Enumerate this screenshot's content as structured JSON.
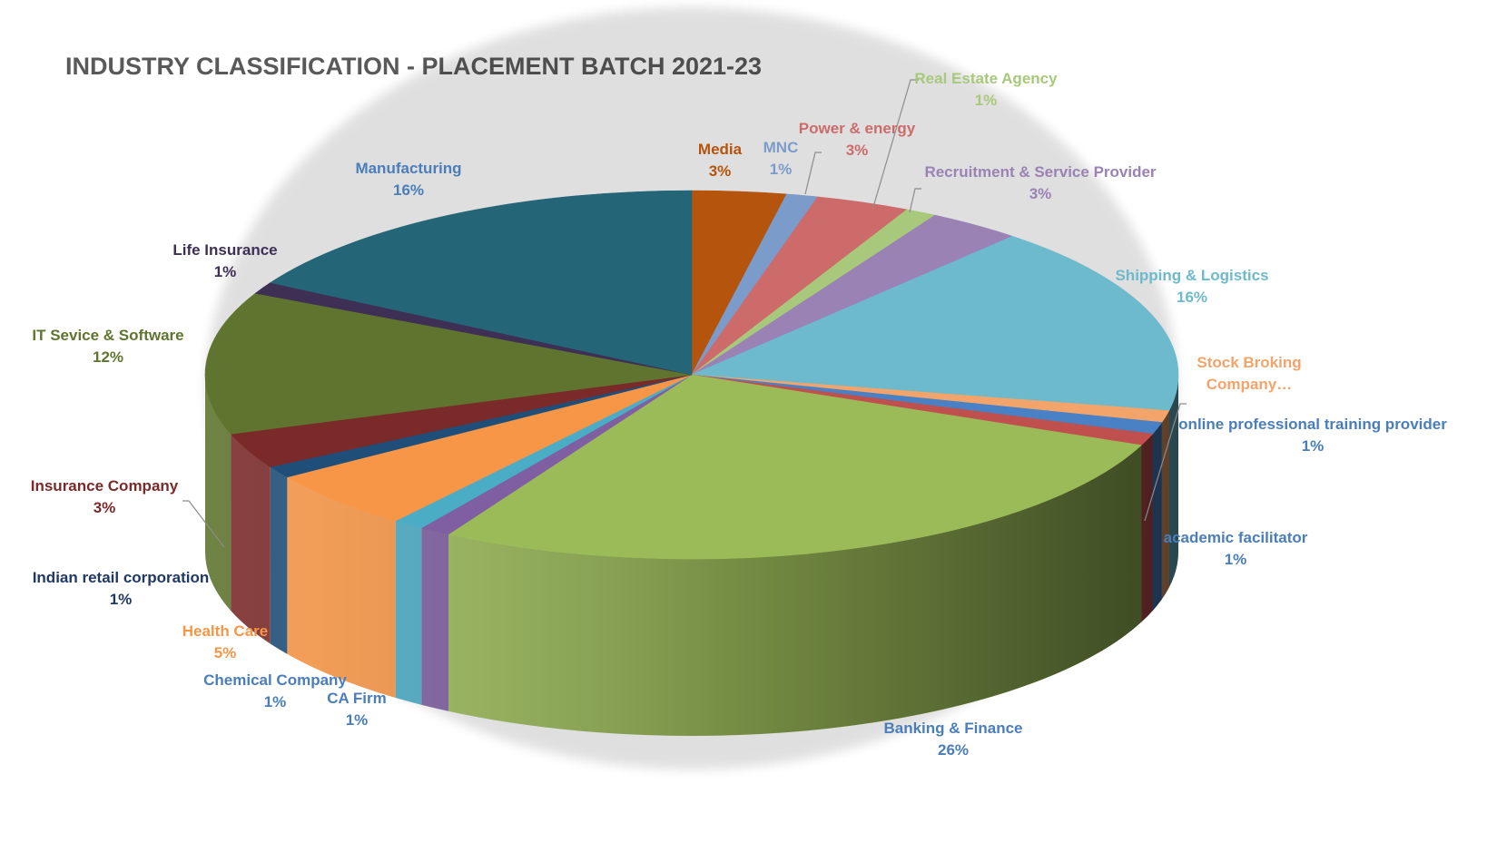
{
  "chart_data": {
    "type": "pie",
    "style": "3d-pie",
    "title": "INDUSTRY CLASSIFICATION - PLACEMENT BATCH 2021-23",
    "slices": [
      {
        "name": "Media",
        "value": 3,
        "label": "3%",
        "color": "#B5540C",
        "label_color": "#B5540C"
      },
      {
        "name": "MNC",
        "value": 1,
        "label": "1%",
        "color": "#7B9CCB",
        "label_color": "#7B9CCB"
      },
      {
        "name": "Power & energy",
        "value": 3,
        "label": "3%",
        "color": "#CD6B6B",
        "label_color": "#CD6B6B"
      },
      {
        "name": "Real Estate Agency",
        "value": 1,
        "label": "1%",
        "color": "#A8C97B",
        "label_color": "#A8C97B"
      },
      {
        "name": "Recruitment & Service Provider",
        "value": 3,
        "label": "3%",
        "color": "#9A82B5",
        "label_color": "#9A82B5"
      },
      {
        "name": "Shipping & Logistics",
        "value": 16,
        "label": "16%",
        "color": "#6DBACD",
        "label_color": "#6DBACD"
      },
      {
        "name": "Stock Broking Company...",
        "value": 1,
        "label": "",
        "color": "#F2A46A",
        "label_color": "#F2A46A"
      },
      {
        "name": "online professional training provider",
        "value": 1,
        "label": "1%",
        "color": "#4A80C4",
        "label_color": "#4A7EBB"
      },
      {
        "name": "academic facilitator",
        "value": 1,
        "label": "1%",
        "color": "#C0504D",
        "label_color": "#4A7EBB"
      },
      {
        "name": "Banking & Finance",
        "value": 26,
        "label": "26%",
        "color": "#9BBB59",
        "label_color": "#4A7EBB"
      },
      {
        "name": "CA Firm",
        "value": 1,
        "label": "1%",
        "color": "#7F5FA2",
        "label_color": "#4A7EBB"
      },
      {
        "name": "Chemical Company",
        "value": 1,
        "label": "1%",
        "color": "#4BACC6",
        "label_color": "#4A7EBB"
      },
      {
        "name": "Health Care",
        "value": 5,
        "label": "5%",
        "color": "#F79646",
        "label_color": "#F79646"
      },
      {
        "name": "Indian retail corporation",
        "value": 1,
        "label": "1%",
        "color": "#1F4E79",
        "label_color": "#1F3864"
      },
      {
        "name": "Insurance Company",
        "value": 3,
        "label": "3%",
        "color": "#7B2A2A",
        "label_color": "#7B2A2A"
      },
      {
        "name": "IT Sevice & Software",
        "value": 12,
        "label": "12%",
        "color": "#5F752F",
        "label_color": "#5F752F"
      },
      {
        "name": "Life Insurance",
        "value": 1,
        "label": "1%",
        "color": "#3E2F55",
        "label_color": "#3E2F55"
      },
      {
        "name": "Manufacturing",
        "value": 16,
        "label": "16%",
        "color": "#246677",
        "label_color": "#4A7EBB"
      }
    ]
  }
}
